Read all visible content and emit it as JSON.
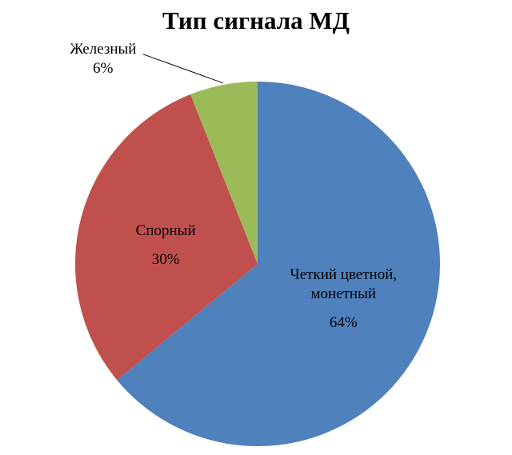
{
  "chart_data": {
    "type": "pie",
    "title": "Тип сигнала МД",
    "categories": [
      "Четкий цветной, монетный",
      "Спорный",
      "Железный"
    ],
    "values": [
      64,
      30,
      6
    ],
    "value_labels": [
      "64%",
      "30%",
      "6%"
    ],
    "colors": [
      "#4f81bd",
      "#c0504d",
      "#9bbb59"
    ]
  }
}
